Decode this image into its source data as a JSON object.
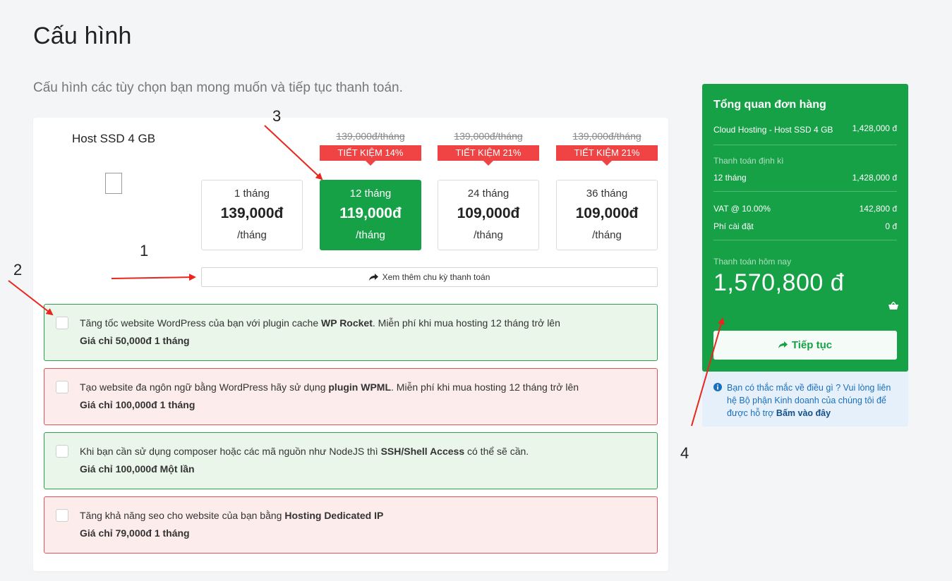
{
  "page": {
    "title": "Cấu hình",
    "subtitle": "Cấu hình các tùy chọn bạn mong muốn và tiếp tục thanh toán."
  },
  "product": {
    "name": "Host SSD 4 GB"
  },
  "billing_cycles": [
    {
      "name": "1 tháng",
      "price": "139,000đ",
      "unit": "/tháng",
      "old_price": "",
      "badge": "",
      "selected": false
    },
    {
      "name": "12 tháng",
      "price": "119,000đ",
      "unit": "/tháng",
      "old_price": "139,000đ/tháng",
      "badge": "TIẾT KIỆM 14%",
      "selected": true
    },
    {
      "name": "24 tháng",
      "price": "109,000đ",
      "unit": "/tháng",
      "old_price": "139,000đ/tháng",
      "badge": "TIẾT KIỆM 21%",
      "selected": false
    },
    {
      "name": "36 tháng",
      "price": "109,000đ",
      "unit": "/tháng",
      "old_price": "139,000đ/tháng",
      "badge": "TIẾT KIỆM 21%",
      "selected": false
    }
  ],
  "more_cycles_label": "Xem thêm chu kỳ thanh toán",
  "addons": [
    {
      "pre": "Tăng tốc website WordPress của bạn với plugin cache ",
      "bold": "WP Rocket",
      "post": ". Miễn phí khi mua hosting 12 tháng trở lên",
      "price": "Giá chỉ 50,000đ 1 tháng",
      "checked": false,
      "style": "green"
    },
    {
      "pre": "Tạo website đa ngôn ngữ bằng WordPress hãy sử dụng ",
      "bold": "plugin WPML",
      "post": ". Miễn phí khi mua hosting 12 tháng trở lên",
      "price": "Giá chỉ 100,000đ 1 tháng",
      "checked": false,
      "style": "red"
    },
    {
      "pre": "Khi bạn cần sử dụng composer hoặc các mã nguồn như NodeJS thì ",
      "bold": "SSH/Shell Access",
      "post": " có thể sẽ cần.",
      "price": "Giá chỉ 100,000đ Một lần",
      "checked": false,
      "style": "green"
    },
    {
      "pre": "Tăng khả năng seo cho website của bạn bằng ",
      "bold": "Hosting Dedicated IP",
      "post": "",
      "price": "Giá chỉ 79,000đ 1 tháng",
      "checked": false,
      "style": "red"
    }
  ],
  "summary": {
    "title": "Tổng quan đơn hàng",
    "item_name": "Cloud Hosting - Host SSD 4 GB",
    "item_price": "1,428,000 đ",
    "recurring_label": "Thanh toán định kì",
    "recurring_cycle": "12 tháng",
    "recurring_price": "1,428,000 đ",
    "vat_label": "VAT @ 10.00%",
    "vat_amount": "142,800 đ",
    "setup_label": "Phí cài đặt",
    "setup_amount": "0 đ",
    "today_label": "Thanh toán hôm nay",
    "today_amount": "1,570,800 đ",
    "continue_label": "Tiếp tục"
  },
  "help": {
    "text": "Bạn có thắc mắc về điều gì ? Vui lòng liên hệ Bộ phận Kinh doanh của chúng tôi để được hỗ trợ ",
    "link": "Bấm vào đây"
  },
  "annotations": [
    "1",
    "2",
    "3",
    "4"
  ],
  "colors": {
    "brand_green": "#17a147",
    "badge_red": "#f04444",
    "addon_green_bg": "#eaf6ea",
    "addon_red_bg": "#fdecec",
    "annotation_arrow": "#e8261c",
    "help_blue": "#1a6fbd"
  }
}
